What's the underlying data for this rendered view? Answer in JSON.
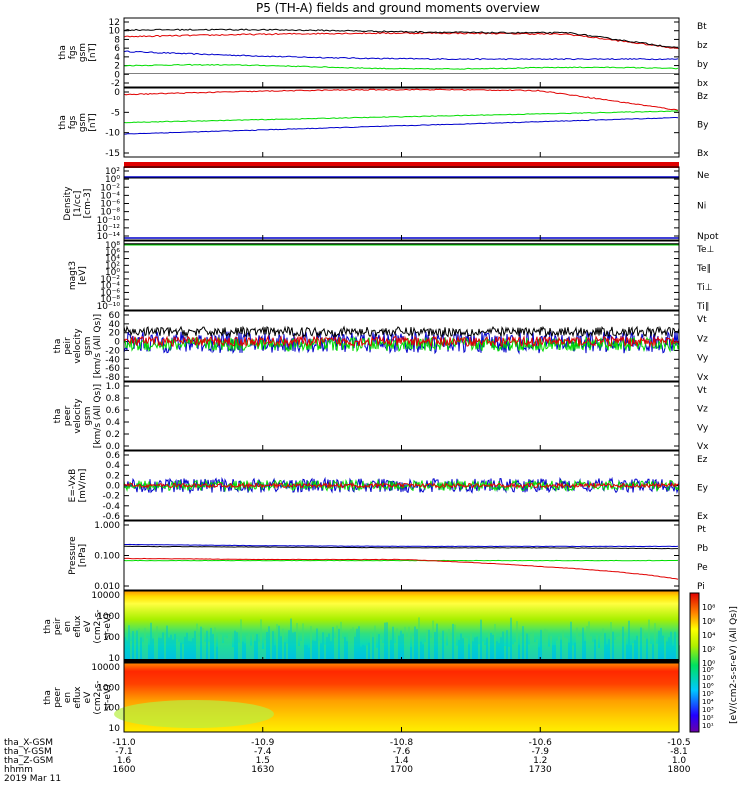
{
  "title": "P5 (TH-A) fields and ground moments overview",
  "colors": {
    "black": "#000000",
    "red": "#e00000",
    "green": "#00dd00",
    "blue": "#0000cc"
  },
  "panels": [
    {
      "key": "fgs_gsm",
      "ylabel": [
        "tha",
        "fgs",
        "gsm",
        "[nT]"
      ],
      "yticks": [
        "12",
        "10",
        "8",
        "6",
        "4",
        "2",
        "0",
        "-2"
      ],
      "legend": [
        {
          "label": "Bt",
          "color": "#000000"
        },
        {
          "label": "bz",
          "color": "#e00000"
        },
        {
          "label": "by",
          "color": "#00dd00"
        },
        {
          "label": "bx",
          "color": "#0000cc"
        }
      ]
    },
    {
      "key": "fgs_gsm2",
      "ylabel": [
        "tha",
        "fgs",
        "gsm",
        "[nT]"
      ],
      "yticks": [
        "0",
        "-5",
        "-10",
        "-15"
      ],
      "legend": [
        {
          "label": "Bz",
          "color": "#e00000"
        },
        {
          "label": "By",
          "color": "#00dd00"
        },
        {
          "label": "Bx",
          "color": "#0000cc"
        }
      ]
    },
    {
      "key": "density",
      "ylabel": [
        "Density",
        "[1/cc]",
        "[cm-3]"
      ],
      "yticks": [
        "10²",
        "10⁰",
        "10⁻²",
        "10⁻⁴",
        "10⁻⁶",
        "10⁻⁸",
        "10⁻¹⁰",
        "10⁻¹²",
        "10⁻¹⁴"
      ],
      "legend": [
        {
          "label": "Ne",
          "color": "#e00000"
        },
        {
          "label": "Ni",
          "color": "#000000"
        },
        {
          "label": "Npot",
          "color": "#0000cc"
        }
      ]
    },
    {
      "key": "temp",
      "ylabel": [
        "magt3",
        "[eV]"
      ],
      "yticks": [
        "10⁸",
        "10⁶",
        "10⁴",
        "10²",
        "10⁰",
        "10⁻²",
        "10⁻⁴",
        "10⁻⁶",
        "10⁻⁸",
        "10⁻¹⁰"
      ],
      "legend": [
        {
          "label": "Te⊥",
          "color": "#e00000"
        },
        {
          "label": "Te∥",
          "color": "#000000"
        },
        {
          "label": "Ti⊥",
          "color": "#0000cc"
        },
        {
          "label": "Ti∥",
          "color": "#00dd00"
        }
      ]
    },
    {
      "key": "peir_vel",
      "ylabel": [
        "tha",
        "peir",
        "velocity",
        "gsm",
        "[km/s (All Qs)]"
      ],
      "yticks": [
        "60",
        "40",
        "20",
        "0",
        "-20",
        "-40",
        "-60",
        "-80"
      ],
      "legend": [
        {
          "label": "Vt",
          "color": "#000000"
        },
        {
          "label": "Vz",
          "color": "#e00000"
        },
        {
          "label": "Vy",
          "color": "#00dd00"
        },
        {
          "label": "Vx",
          "color": "#0000cc"
        }
      ]
    },
    {
      "key": "peer_vel",
      "ylabel": [
        "tha",
        "peer",
        "velocity",
        "gsm",
        "[km/s (All Qs)]"
      ],
      "yticks": [
        "1.0",
        "0.8",
        "0.6",
        "0.4",
        "0.2",
        "0.0"
      ],
      "legend": [
        {
          "label": "Vt",
          "color": "#000000"
        },
        {
          "label": "Vz",
          "color": "#e00000"
        },
        {
          "label": "Vy",
          "color": "#00dd00"
        },
        {
          "label": "Vx",
          "color": "#0000cc"
        }
      ]
    },
    {
      "key": "efield",
      "ylabel": [
        "E=-VxB",
        "[mV/m]"
      ],
      "yticks": [
        "0.6",
        "0.4",
        "0.2",
        "0.0",
        "-0.2",
        "-0.4",
        "-0.6"
      ],
      "legend": [
        {
          "label": "Ez",
          "color": "#e00000"
        },
        {
          "label": "Ey",
          "color": "#00dd00"
        },
        {
          "label": "Ex",
          "color": "#0000cc"
        }
      ]
    },
    {
      "key": "pressure",
      "ylabel": [
        "Pressure",
        "[nPa]"
      ],
      "yticks": [
        "1.000",
        "0.100",
        "0.010"
      ],
      "legend": [
        {
          "label": "Pt",
          "color": "#000000"
        },
        {
          "label": "Pb",
          "color": "#e00000"
        },
        {
          "label": "Pe",
          "color": "#00dd00"
        },
        {
          "label": "Pi",
          "color": "#0000cc"
        }
      ]
    },
    {
      "key": "peir_spec",
      "ylabel": [
        "tha",
        "peir",
        "en",
        "eflux",
        "eV",
        "(cm2-s-",
        "sr-eV)"
      ],
      "yticks": [
        "10000",
        "1000",
        "100",
        "10"
      ],
      "legend": []
    },
    {
      "key": "peer_spec",
      "ylabel": [
        "tha",
        "peer",
        "en",
        "eflux",
        "eV",
        "(cm2-s-",
        "sr-eV)"
      ],
      "yticks": [
        "10000",
        "1000",
        "100",
        "10"
      ],
      "legend": []
    }
  ],
  "colorbar": {
    "label": "[eV/(cm2-s-sr-eV)]",
    "label2": "[eV/(cm2-s-sr-eV) (All Qs)]",
    "ticks_top": [
      "10⁸",
      "10⁶",
      "10⁴",
      "10²",
      "10⁰"
    ],
    "ticks_bottom": [
      "10⁸",
      "10⁷",
      "10⁶",
      "10⁵",
      "10⁴",
      "10³",
      "10²",
      "10¹"
    ]
  },
  "xaxis": {
    "rows": [
      {
        "name": "tha_X-GSM",
        "values": [
          "-11.0",
          "-10.9",
          "-10.8",
          "-10.6",
          "-10.5"
        ]
      },
      {
        "name": "tha_Y-GSM",
        "values": [
          "-7.1",
          "-7.4",
          "-7.6",
          "-7.9",
          "-8.1"
        ]
      },
      {
        "name": "tha_Z-GSM",
        "values": [
          "1.6",
          "1.5",
          "1.4",
          "1.2",
          "1.0"
        ]
      },
      {
        "name": "hhmm",
        "values": [
          "1600",
          "1630",
          "1700",
          "1730",
          "1800"
        ]
      }
    ],
    "date": "2019 Mar 11"
  },
  "chart_data": {
    "type": "line",
    "title": "P5 (TH-A) fields and ground moments overview",
    "x": [
      "1600",
      "1630",
      "1700",
      "1730",
      "1800"
    ],
    "xlabel": "hhmm",
    "series": [
      {
        "name": "Bt",
        "values": [
          9.8,
          9.4,
          9.0,
          8.8,
          5.6
        ]
      },
      {
        "name": "bz",
        "values": [
          8.6,
          9.0,
          8.8,
          8.6,
          5.3
        ]
      },
      {
        "name": "by",
        "values": [
          1.8,
          1.2,
          1.0,
          1.2,
          0.5
        ]
      },
      {
        "name": "bx",
        "values": [
          5.0,
          3.8,
          2.4,
          2.4,
          2.0
        ]
      },
      {
        "name": "Bz",
        "values": [
          2.0,
          3.2,
          2.8,
          1.0,
          -3.0
        ]
      },
      {
        "name": "By",
        "values": [
          -6.5,
          -6.3,
          -5.5,
          -4.3,
          -3.0
        ]
      },
      {
        "name": "Bx",
        "values": [
          -10.0,
          -10.0,
          -8.5,
          -6.5,
          -5.2
        ]
      },
      {
        "name": "Pt",
        "values": [
          0.17,
          0.16,
          0.15,
          0.15,
          0.14
        ]
      },
      {
        "name": "Pb",
        "values": [
          0.06,
          0.055,
          0.055,
          0.03,
          0.01
        ]
      },
      {
        "name": "Pe",
        "values": [
          0.05,
          0.05,
          0.05,
          0.05,
          0.05
        ]
      },
      {
        "name": "Pi",
        "values": [
          0.2,
          0.18,
          0.17,
          0.17,
          0.17
        ]
      }
    ]
  }
}
